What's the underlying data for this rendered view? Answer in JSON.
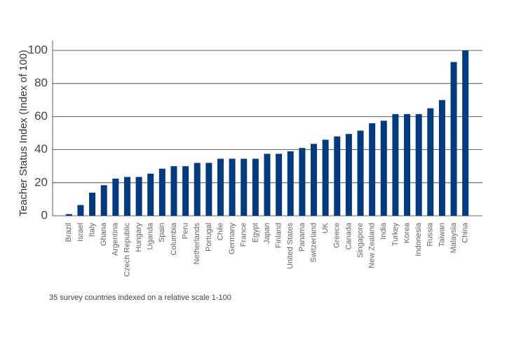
{
  "chart_data": {
    "type": "bar",
    "y_label": "Teacher Status Index (Index of 100)",
    "caption": "35 survey countries indexed on a relative scale 1-100",
    "categories": [
      "Brazil",
      "Israel",
      "Italy",
      "Ghana",
      "Argentina",
      "Czech Republic",
      "Hungary",
      "Uganda",
      "Spain",
      "Columbia",
      "Peru",
      "Netherlands",
      "Portugal",
      "Chile",
      "Germany",
      "France",
      "Egypt",
      "Japan",
      "Finland",
      "United States",
      "Panama",
      "Switzerland",
      "UK",
      "Greece",
      "Canada",
      "Singapore",
      "New Zealand",
      "India",
      "Turkey",
      "Korea",
      "Indonesia",
      "Russia",
      "Taiwan",
      "Malaysia",
      "China"
    ],
    "values": [
      1,
      6.5,
      14,
      18.5,
      22.5,
      23.5,
      23.5,
      25.5,
      28.5,
      30,
      30,
      32,
      32,
      34.5,
      34.5,
      34.5,
      34.5,
      37.5,
      37.5,
      39,
      41,
      43.5,
      46,
      48,
      49.5,
      51.5,
      56,
      57.5,
      61.5,
      61.5,
      61.5,
      65,
      70,
      93,
      100
    ],
    "color": "#003a80",
    "ylim": [
      0,
      100
    ],
    "yticks": [
      0,
      20,
      40,
      60,
      80,
      100
    ],
    "grid": true
  }
}
